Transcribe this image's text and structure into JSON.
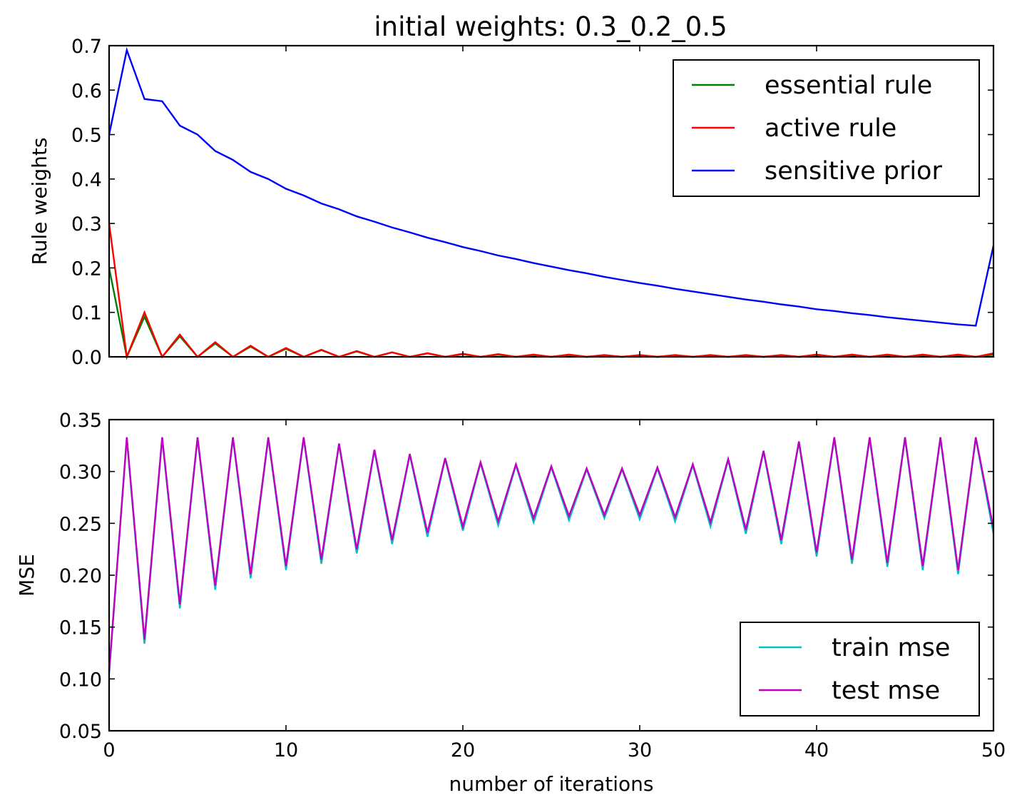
{
  "chart_data": [
    {
      "type": "line",
      "title": "initial weights: 0.3_0.2_0.5",
      "xlabel": "",
      "ylabel": "Rule weights",
      "xlim": [
        0,
        50
      ],
      "ylim": [
        0.0,
        0.7
      ],
      "x_ticks": [
        "0",
        "10",
        "20",
        "30",
        "40",
        "50"
      ],
      "y_ticks": [
        "0.0",
        "0.1",
        "0.2",
        "0.3",
        "0.4",
        "0.5",
        "0.6",
        "0.7"
      ],
      "grid": false,
      "legend_position": "top-right",
      "x": [
        0,
        1,
        2,
        3,
        4,
        5,
        6,
        7,
        8,
        9,
        10,
        11,
        12,
        13,
        14,
        15,
        16,
        17,
        18,
        19,
        20,
        21,
        22,
        23,
        24,
        25,
        26,
        27,
        28,
        29,
        30,
        31,
        32,
        33,
        34,
        35,
        36,
        37,
        38,
        39,
        40,
        41,
        42,
        43,
        44,
        45,
        46,
        47,
        48,
        49,
        50
      ],
      "series": [
        {
          "name": "essential rule",
          "color": "#008000",
          "values": [
            0.2,
            0.0,
            0.09,
            0.0,
            0.046,
            0.0,
            0.03,
            0.0,
            0.023,
            0.0,
            0.018,
            0.0,
            0.015,
            0.0,
            0.012,
            0.0,
            0.01,
            0.0,
            0.008,
            0.0,
            0.006,
            0.0,
            0.005,
            0.0,
            0.004,
            0.0,
            0.004,
            0.0,
            0.003,
            0.0,
            0.003,
            0.0,
            0.003,
            0.0,
            0.003,
            0.0,
            0.003,
            0.0,
            0.003,
            0.0,
            0.003,
            0.0,
            0.003,
            0.0,
            0.003,
            0.0,
            0.003,
            0.0,
            0.003,
            0.0,
            0.005
          ]
        },
        {
          "name": "active rule",
          "color": "#ff0000",
          "values": [
            0.3,
            0.0,
            0.1,
            0.0,
            0.05,
            0.0,
            0.033,
            0.0,
            0.025,
            0.0,
            0.02,
            0.0,
            0.016,
            0.0,
            0.013,
            0.0,
            0.01,
            0.0,
            0.008,
            0.0,
            0.007,
            0.0,
            0.006,
            0.0,
            0.005,
            0.0,
            0.005,
            0.0,
            0.004,
            0.0,
            0.004,
            0.0,
            0.004,
            0.0,
            0.004,
            0.0,
            0.004,
            0.0,
            0.004,
            0.0,
            0.005,
            0.0,
            0.005,
            0.0,
            0.005,
            0.0,
            0.005,
            0.0,
            0.005,
            0.0,
            0.008
          ]
        },
        {
          "name": "sensitive prior",
          "color": "#0000ff",
          "values": [
            0.5,
            0.69,
            0.58,
            0.575,
            0.52,
            0.5,
            0.463,
            0.443,
            0.416,
            0.4,
            0.378,
            0.363,
            0.345,
            0.332,
            0.316,
            0.304,
            0.291,
            0.28,
            0.268,
            0.258,
            0.247,
            0.238,
            0.228,
            0.22,
            0.211,
            0.203,
            0.195,
            0.188,
            0.18,
            0.173,
            0.166,
            0.16,
            0.153,
            0.147,
            0.141,
            0.135,
            0.129,
            0.124,
            0.118,
            0.113,
            0.107,
            0.103,
            0.098,
            0.094,
            0.089,
            0.085,
            0.081,
            0.077,
            0.073,
            0.07,
            0.25
          ]
        }
      ]
    },
    {
      "type": "line",
      "title": "",
      "xlabel": "number of iterations",
      "ylabel": "MSE",
      "xlim": [
        0,
        50
      ],
      "ylim": [
        0.05,
        0.35
      ],
      "x_ticks": [
        "0",
        "10",
        "20",
        "30",
        "40",
        "50"
      ],
      "y_ticks": [
        "0.05",
        "0.10",
        "0.15",
        "0.20",
        "0.25",
        "0.30",
        "0.35"
      ],
      "grid": false,
      "legend_position": "bottom-right",
      "x": [
        0,
        1,
        2,
        3,
        4,
        5,
        6,
        7,
        8,
        9,
        10,
        11,
        12,
        13,
        14,
        15,
        16,
        17,
        18,
        19,
        20,
        21,
        22,
        23,
        24,
        25,
        26,
        27,
        28,
        29,
        30,
        31,
        32,
        33,
        34,
        35,
        36,
        37,
        38,
        39,
        40,
        41,
        42,
        43,
        44,
        45,
        46,
        47,
        48,
        49,
        50
      ],
      "series": [
        {
          "name": "train mse",
          "color": "#00bfbf",
          "values": [
            0.105,
            0.332,
            0.134,
            0.332,
            0.168,
            0.332,
            0.186,
            0.332,
            0.197,
            0.332,
            0.205,
            0.332,
            0.211,
            0.326,
            0.221,
            0.32,
            0.23,
            0.316,
            0.237,
            0.312,
            0.243,
            0.308,
            0.248,
            0.306,
            0.251,
            0.304,
            0.253,
            0.302,
            0.255,
            0.302,
            0.254,
            0.303,
            0.252,
            0.306,
            0.247,
            0.311,
            0.24,
            0.319,
            0.23,
            0.328,
            0.218,
            0.332,
            0.211,
            0.332,
            0.208,
            0.332,
            0.205,
            0.332,
            0.201,
            0.332,
            0.24
          ]
        },
        {
          "name": "test mse",
          "color": "#bf00bf",
          "values": [
            0.107,
            0.333,
            0.138,
            0.333,
            0.172,
            0.333,
            0.19,
            0.333,
            0.201,
            0.333,
            0.209,
            0.333,
            0.215,
            0.327,
            0.225,
            0.321,
            0.234,
            0.317,
            0.241,
            0.313,
            0.247,
            0.309,
            0.252,
            0.307,
            0.255,
            0.305,
            0.257,
            0.303,
            0.258,
            0.303,
            0.258,
            0.304,
            0.256,
            0.307,
            0.251,
            0.312,
            0.244,
            0.32,
            0.234,
            0.329,
            0.222,
            0.333,
            0.215,
            0.333,
            0.212,
            0.333,
            0.209,
            0.333,
            0.205,
            0.333,
            0.245
          ]
        }
      ]
    }
  ]
}
